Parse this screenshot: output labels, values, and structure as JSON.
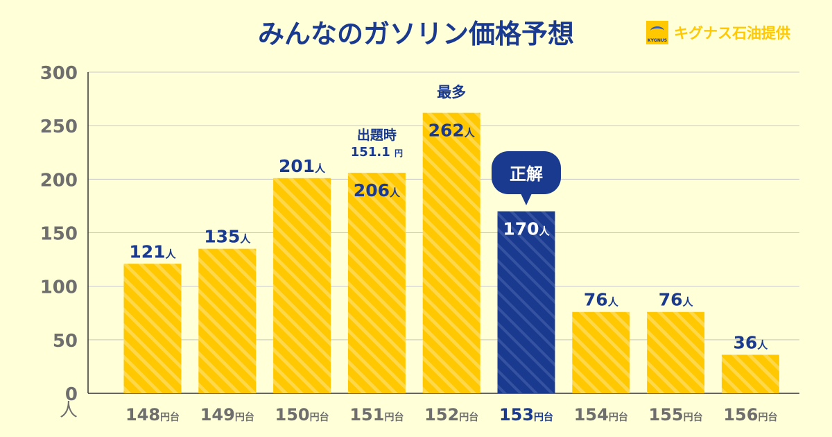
{
  "title": "みんなのガソリン価格予想",
  "sponsor": {
    "logo_text": "KYGNUS",
    "text": "キグナス石油提供"
  },
  "colors": {
    "bar": "#ffc800",
    "highlight": "#1a3a8f",
    "label": "#1a3a8f",
    "axis": "#6e6e6e",
    "grid": "#c8c8c8"
  },
  "chart_data": {
    "type": "bar",
    "title": "みんなのガソリン価格予想",
    "ylabel": "人",
    "ylim": [
      0,
      300
    ],
    "yticks": [
      0,
      50,
      100,
      150,
      200,
      250,
      300
    ],
    "unit_suffix": "円台",
    "value_suffix": "人",
    "categories": [
      "148",
      "149",
      "150",
      "151",
      "152",
      "153",
      "154",
      "155",
      "156"
    ],
    "values": [
      121,
      135,
      201,
      206,
      262,
      170,
      76,
      76,
      36
    ],
    "highlight_index": 5,
    "annotations": {
      "most": {
        "index": 4,
        "text": "最多"
      },
      "correct": {
        "index": 5,
        "text": "正解"
      },
      "at_question": {
        "index": 3,
        "line1": "出題時",
        "line2": "151.1",
        "unit": "円"
      }
    }
  }
}
